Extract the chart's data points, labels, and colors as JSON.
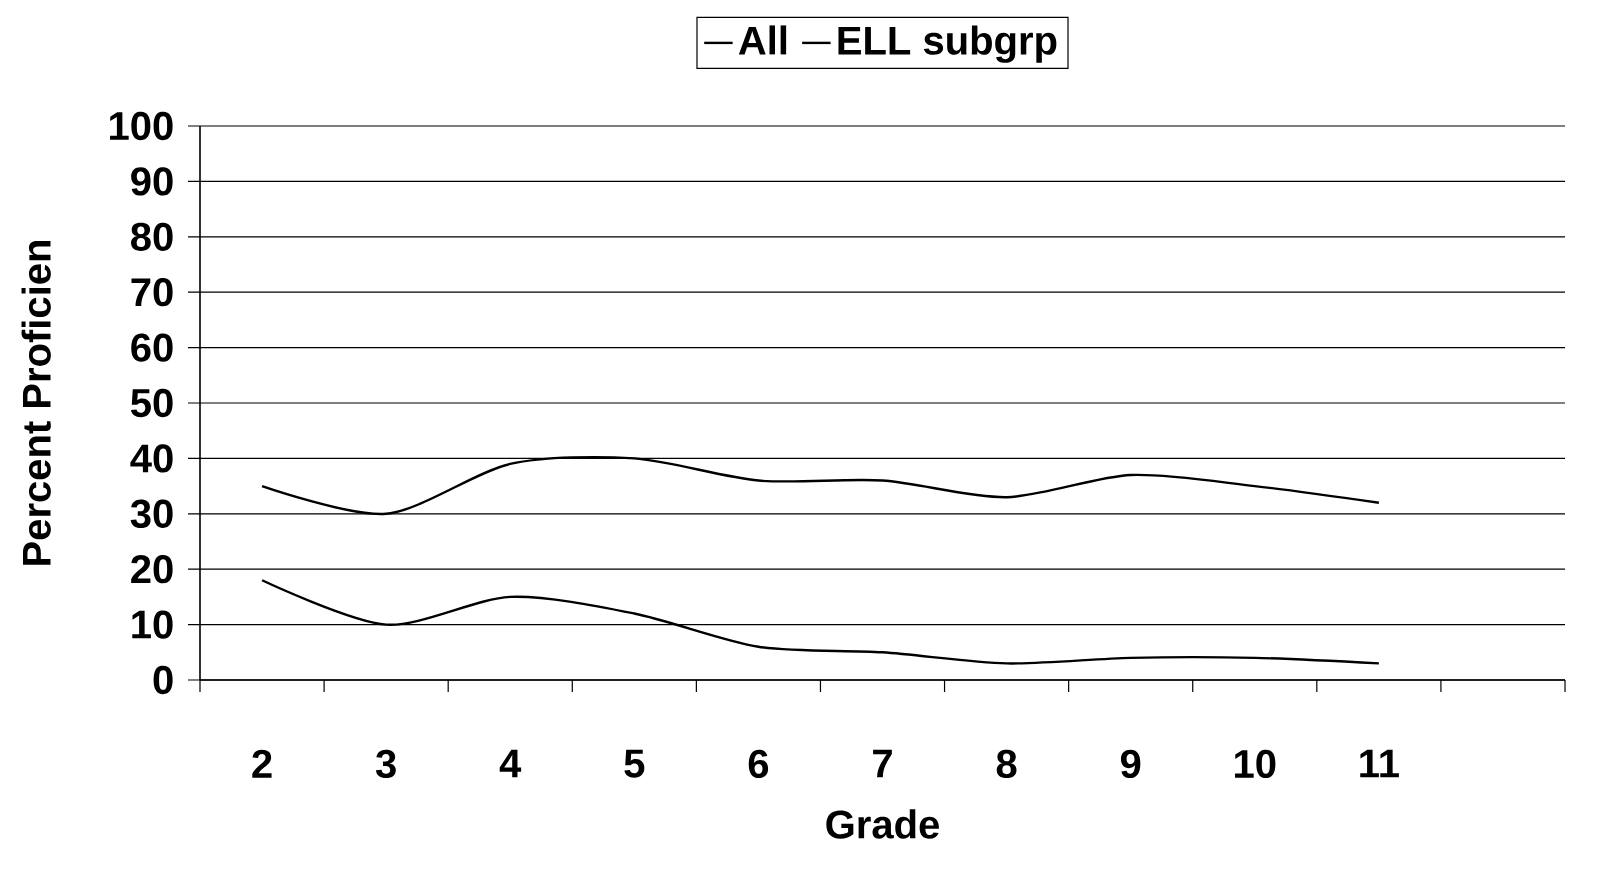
{
  "chart_data": {
    "type": "line",
    "xlabel": "Grade",
    "ylabel": "Percent Proficien",
    "categories": [
      "2",
      "3",
      "4",
      "5",
      "6",
      "7",
      "8",
      "9",
      "10",
      "11",
      null
    ],
    "series": [
      {
        "name": "All",
        "color": "#000000",
        "values": [
          35,
          30,
          39,
          40,
          36,
          36,
          33,
          37,
          35,
          32,
          null
        ]
      },
      {
        "name": "ELL subgrp",
        "color": "#000000",
        "values": [
          18,
          10,
          15,
          12,
          6,
          5,
          3,
          4,
          4,
          3,
          null
        ]
      }
    ],
    "ylim": [
      0,
      100
    ],
    "yticks": [
      0,
      10,
      20,
      30,
      40,
      50,
      60,
      70,
      80,
      90,
      100
    ],
    "grid": "y",
    "legend": "top",
    "marker": "none",
    "line_style": "solid"
  }
}
